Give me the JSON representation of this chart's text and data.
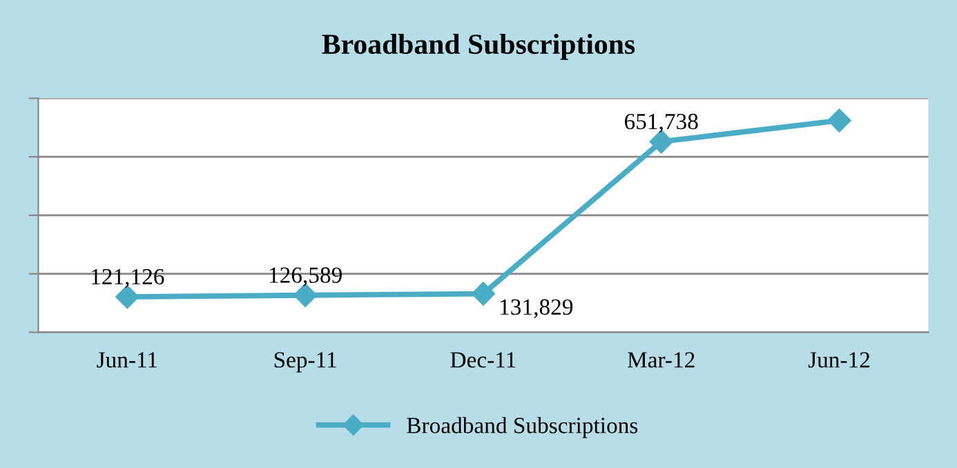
{
  "chart_data": {
    "type": "line",
    "title": "Broadband Subscriptions",
    "categories": [
      "Jun-11",
      "Sep-11",
      "Dec-11",
      "Mar-12",
      "Jun-12"
    ],
    "series": [
      {
        "name": "Broadband Subscriptions",
        "color": "#4bacc6",
        "values": [
          121126,
          126589,
          131829,
          651738,
          724000
        ],
        "value_labels": [
          "121,126",
          "126,589",
          "131,829",
          "651,738",
          null
        ]
      }
    ],
    "ylim": [
      0,
      800000
    ],
    "yticks": [
      {
        "value": 0,
        "label": null
      },
      {
        "value": 200000,
        "label": null
      },
      {
        "value": 400000,
        "label": null
      },
      {
        "value": 600000,
        "label": null
      },
      {
        "value": 800000,
        "label": null
      }
    ],
    "grid": "y",
    "legend": "bottom",
    "marker": "diamond",
    "line_style": "solid"
  }
}
